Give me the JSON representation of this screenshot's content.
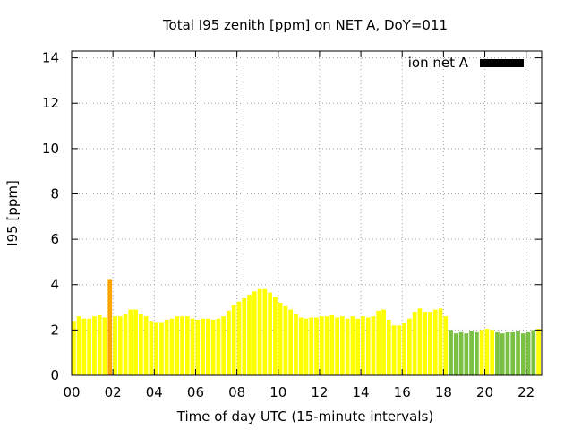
{
  "chart_data": {
    "type": "bar",
    "title": "Total I95 zenith [ppm] on NET A, DoY=011",
    "xlabel": "Time of day UTC (15-minute intervals)",
    "ylabel": "I95 [ppm]",
    "xlim": [
      0,
      22.75
    ],
    "ylim": [
      0,
      14.3
    ],
    "grid": true,
    "legend": {
      "position": "top-right",
      "entries": [
        {
          "label": "ion net A",
          "color": "#000000"
        }
      ]
    },
    "x_ticks": [
      "00",
      "02",
      "04",
      "06",
      "08",
      "10",
      "12",
      "14",
      "16",
      "18",
      "20",
      "22"
    ],
    "y_ticks": [
      "0",
      "2",
      "4",
      "6",
      "8",
      "10",
      "12",
      "14"
    ],
    "colors": {
      "yellow": "#ffff00",
      "orange": "#ffa500",
      "green": "#7ac143"
    },
    "bars": [
      {
        "t": 0.0,
        "v": 2.4,
        "c": "yellow"
      },
      {
        "t": 0.25,
        "v": 2.6,
        "c": "yellow"
      },
      {
        "t": 0.5,
        "v": 2.5,
        "c": "yellow"
      },
      {
        "t": 0.75,
        "v": 2.5,
        "c": "yellow"
      },
      {
        "t": 1.0,
        "v": 2.6,
        "c": "yellow"
      },
      {
        "t": 1.25,
        "v": 2.65,
        "c": "yellow"
      },
      {
        "t": 1.5,
        "v": 2.55,
        "c": "yellow"
      },
      {
        "t": 1.75,
        "v": 4.25,
        "c": "orange"
      },
      {
        "t": 2.0,
        "v": 2.6,
        "c": "yellow"
      },
      {
        "t": 2.25,
        "v": 2.6,
        "c": "yellow"
      },
      {
        "t": 2.5,
        "v": 2.7,
        "c": "yellow"
      },
      {
        "t": 2.75,
        "v": 2.9,
        "c": "yellow"
      },
      {
        "t": 3.0,
        "v": 2.9,
        "c": "yellow"
      },
      {
        "t": 3.25,
        "v": 2.7,
        "c": "yellow"
      },
      {
        "t": 3.5,
        "v": 2.6,
        "c": "yellow"
      },
      {
        "t": 3.75,
        "v": 2.4,
        "c": "yellow"
      },
      {
        "t": 4.0,
        "v": 2.35,
        "c": "yellow"
      },
      {
        "t": 4.25,
        "v": 2.35,
        "c": "yellow"
      },
      {
        "t": 4.5,
        "v": 2.45,
        "c": "yellow"
      },
      {
        "t": 4.75,
        "v": 2.5,
        "c": "yellow"
      },
      {
        "t": 5.0,
        "v": 2.6,
        "c": "yellow"
      },
      {
        "t": 5.25,
        "v": 2.6,
        "c": "yellow"
      },
      {
        "t": 5.5,
        "v": 2.6,
        "c": "yellow"
      },
      {
        "t": 5.75,
        "v": 2.5,
        "c": "yellow"
      },
      {
        "t": 6.0,
        "v": 2.45,
        "c": "yellow"
      },
      {
        "t": 6.25,
        "v": 2.5,
        "c": "yellow"
      },
      {
        "t": 6.5,
        "v": 2.5,
        "c": "yellow"
      },
      {
        "t": 6.75,
        "v": 2.45,
        "c": "yellow"
      },
      {
        "t": 7.0,
        "v": 2.5,
        "c": "yellow"
      },
      {
        "t": 7.25,
        "v": 2.6,
        "c": "yellow"
      },
      {
        "t": 7.5,
        "v": 2.85,
        "c": "yellow"
      },
      {
        "t": 7.75,
        "v": 3.1,
        "c": "yellow"
      },
      {
        "t": 8.0,
        "v": 3.25,
        "c": "yellow"
      },
      {
        "t": 8.25,
        "v": 3.4,
        "c": "yellow"
      },
      {
        "t": 8.5,
        "v": 3.55,
        "c": "yellow"
      },
      {
        "t": 8.75,
        "v": 3.7,
        "c": "yellow"
      },
      {
        "t": 9.0,
        "v": 3.8,
        "c": "yellow"
      },
      {
        "t": 9.25,
        "v": 3.8,
        "c": "yellow"
      },
      {
        "t": 9.5,
        "v": 3.65,
        "c": "yellow"
      },
      {
        "t": 9.75,
        "v": 3.45,
        "c": "yellow"
      },
      {
        "t": 10.0,
        "v": 3.2,
        "c": "yellow"
      },
      {
        "t": 10.25,
        "v": 3.05,
        "c": "yellow"
      },
      {
        "t": 10.5,
        "v": 2.9,
        "c": "yellow"
      },
      {
        "t": 10.75,
        "v": 2.7,
        "c": "yellow"
      },
      {
        "t": 11.0,
        "v": 2.55,
        "c": "yellow"
      },
      {
        "t": 11.25,
        "v": 2.5,
        "c": "yellow"
      },
      {
        "t": 11.5,
        "v": 2.55,
        "c": "yellow"
      },
      {
        "t": 11.75,
        "v": 2.55,
        "c": "yellow"
      },
      {
        "t": 12.0,
        "v": 2.6,
        "c": "yellow"
      },
      {
        "t": 12.25,
        "v": 2.6,
        "c": "yellow"
      },
      {
        "t": 12.5,
        "v": 2.65,
        "c": "yellow"
      },
      {
        "t": 12.75,
        "v": 2.55,
        "c": "yellow"
      },
      {
        "t": 13.0,
        "v": 2.6,
        "c": "yellow"
      },
      {
        "t": 13.25,
        "v": 2.5,
        "c": "yellow"
      },
      {
        "t": 13.5,
        "v": 2.6,
        "c": "yellow"
      },
      {
        "t": 13.75,
        "v": 2.5,
        "c": "yellow"
      },
      {
        "t": 14.0,
        "v": 2.6,
        "c": "yellow"
      },
      {
        "t": 14.25,
        "v": 2.55,
        "c": "yellow"
      },
      {
        "t": 14.5,
        "v": 2.6,
        "c": "yellow"
      },
      {
        "t": 14.75,
        "v": 2.85,
        "c": "yellow"
      },
      {
        "t": 15.0,
        "v": 2.9,
        "c": "yellow"
      },
      {
        "t": 15.25,
        "v": 2.45,
        "c": "yellow"
      },
      {
        "t": 15.5,
        "v": 2.2,
        "c": "yellow"
      },
      {
        "t": 15.75,
        "v": 2.2,
        "c": "yellow"
      },
      {
        "t": 16.0,
        "v": 2.3,
        "c": "yellow"
      },
      {
        "t": 16.25,
        "v": 2.5,
        "c": "yellow"
      },
      {
        "t": 16.5,
        "v": 2.8,
        "c": "yellow"
      },
      {
        "t": 16.75,
        "v": 2.95,
        "c": "yellow"
      },
      {
        "t": 17.0,
        "v": 2.8,
        "c": "yellow"
      },
      {
        "t": 17.25,
        "v": 2.8,
        "c": "yellow"
      },
      {
        "t": 17.5,
        "v": 2.9,
        "c": "yellow"
      },
      {
        "t": 17.75,
        "v": 2.95,
        "c": "yellow"
      },
      {
        "t": 18.0,
        "v": 2.6,
        "c": "yellow"
      },
      {
        "t": 18.25,
        "v": 2.0,
        "c": "green"
      },
      {
        "t": 18.5,
        "v": 1.85,
        "c": "green"
      },
      {
        "t": 18.75,
        "v": 1.9,
        "c": "green"
      },
      {
        "t": 19.0,
        "v": 1.85,
        "c": "green"
      },
      {
        "t": 19.25,
        "v": 1.95,
        "c": "green"
      },
      {
        "t": 19.5,
        "v": 1.9,
        "c": "green"
      },
      {
        "t": 19.75,
        "v": 2.0,
        "c": "yellow"
      },
      {
        "t": 20.0,
        "v": 2.05,
        "c": "yellow"
      },
      {
        "t": 20.25,
        "v": 2.0,
        "c": "yellow"
      },
      {
        "t": 20.5,
        "v": 1.9,
        "c": "green"
      },
      {
        "t": 20.75,
        "v": 1.85,
        "c": "green"
      },
      {
        "t": 21.0,
        "v": 1.9,
        "c": "green"
      },
      {
        "t": 21.25,
        "v": 1.9,
        "c": "green"
      },
      {
        "t": 21.5,
        "v": 1.95,
        "c": "green"
      },
      {
        "t": 21.75,
        "v": 1.85,
        "c": "green"
      },
      {
        "t": 22.0,
        "v": 1.9,
        "c": "green"
      },
      {
        "t": 22.25,
        "v": 2.0,
        "c": "green"
      },
      {
        "t": 22.5,
        "v": 2.05,
        "c": "yellow"
      }
    ]
  }
}
